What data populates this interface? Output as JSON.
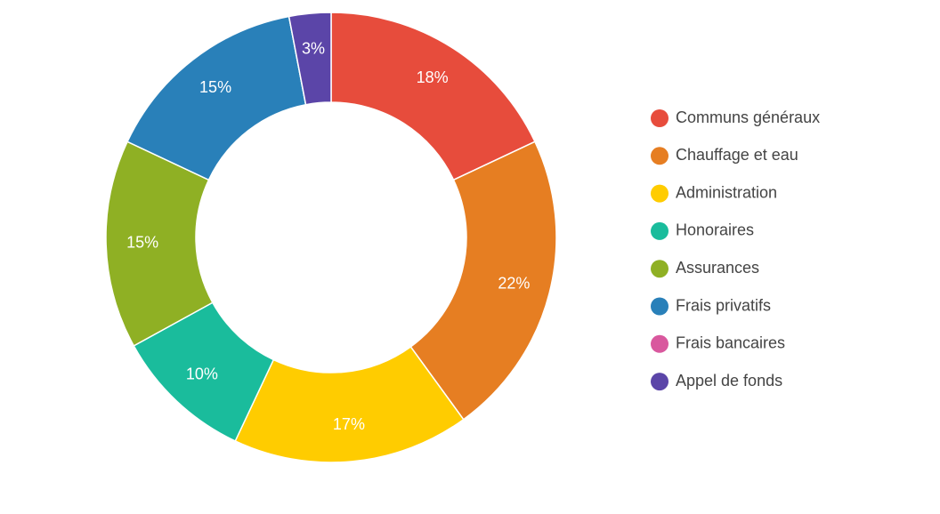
{
  "chart_data": {
    "type": "donut",
    "categories": [
      "Communs généraux",
      "Chauffage et eau",
      "Administration",
      "Honoraires",
      "Assurances",
      "Frais privatifs",
      "Frais bancaires",
      "Appel de fonds"
    ],
    "values": [
      18,
      22,
      17,
      10,
      15,
      15,
      0,
      3
    ],
    "value_labels": [
      "18%",
      "22%",
      "17%",
      "10%",
      "15%",
      "15%",
      null,
      "3%"
    ],
    "colors": [
      "#e74c3c",
      "#e67e22",
      "#ffcc00",
      "#1abc9c",
      "#8fb024",
      "#2980b9",
      "#d9589e",
      "#5b45a8"
    ],
    "legend": "right"
  }
}
